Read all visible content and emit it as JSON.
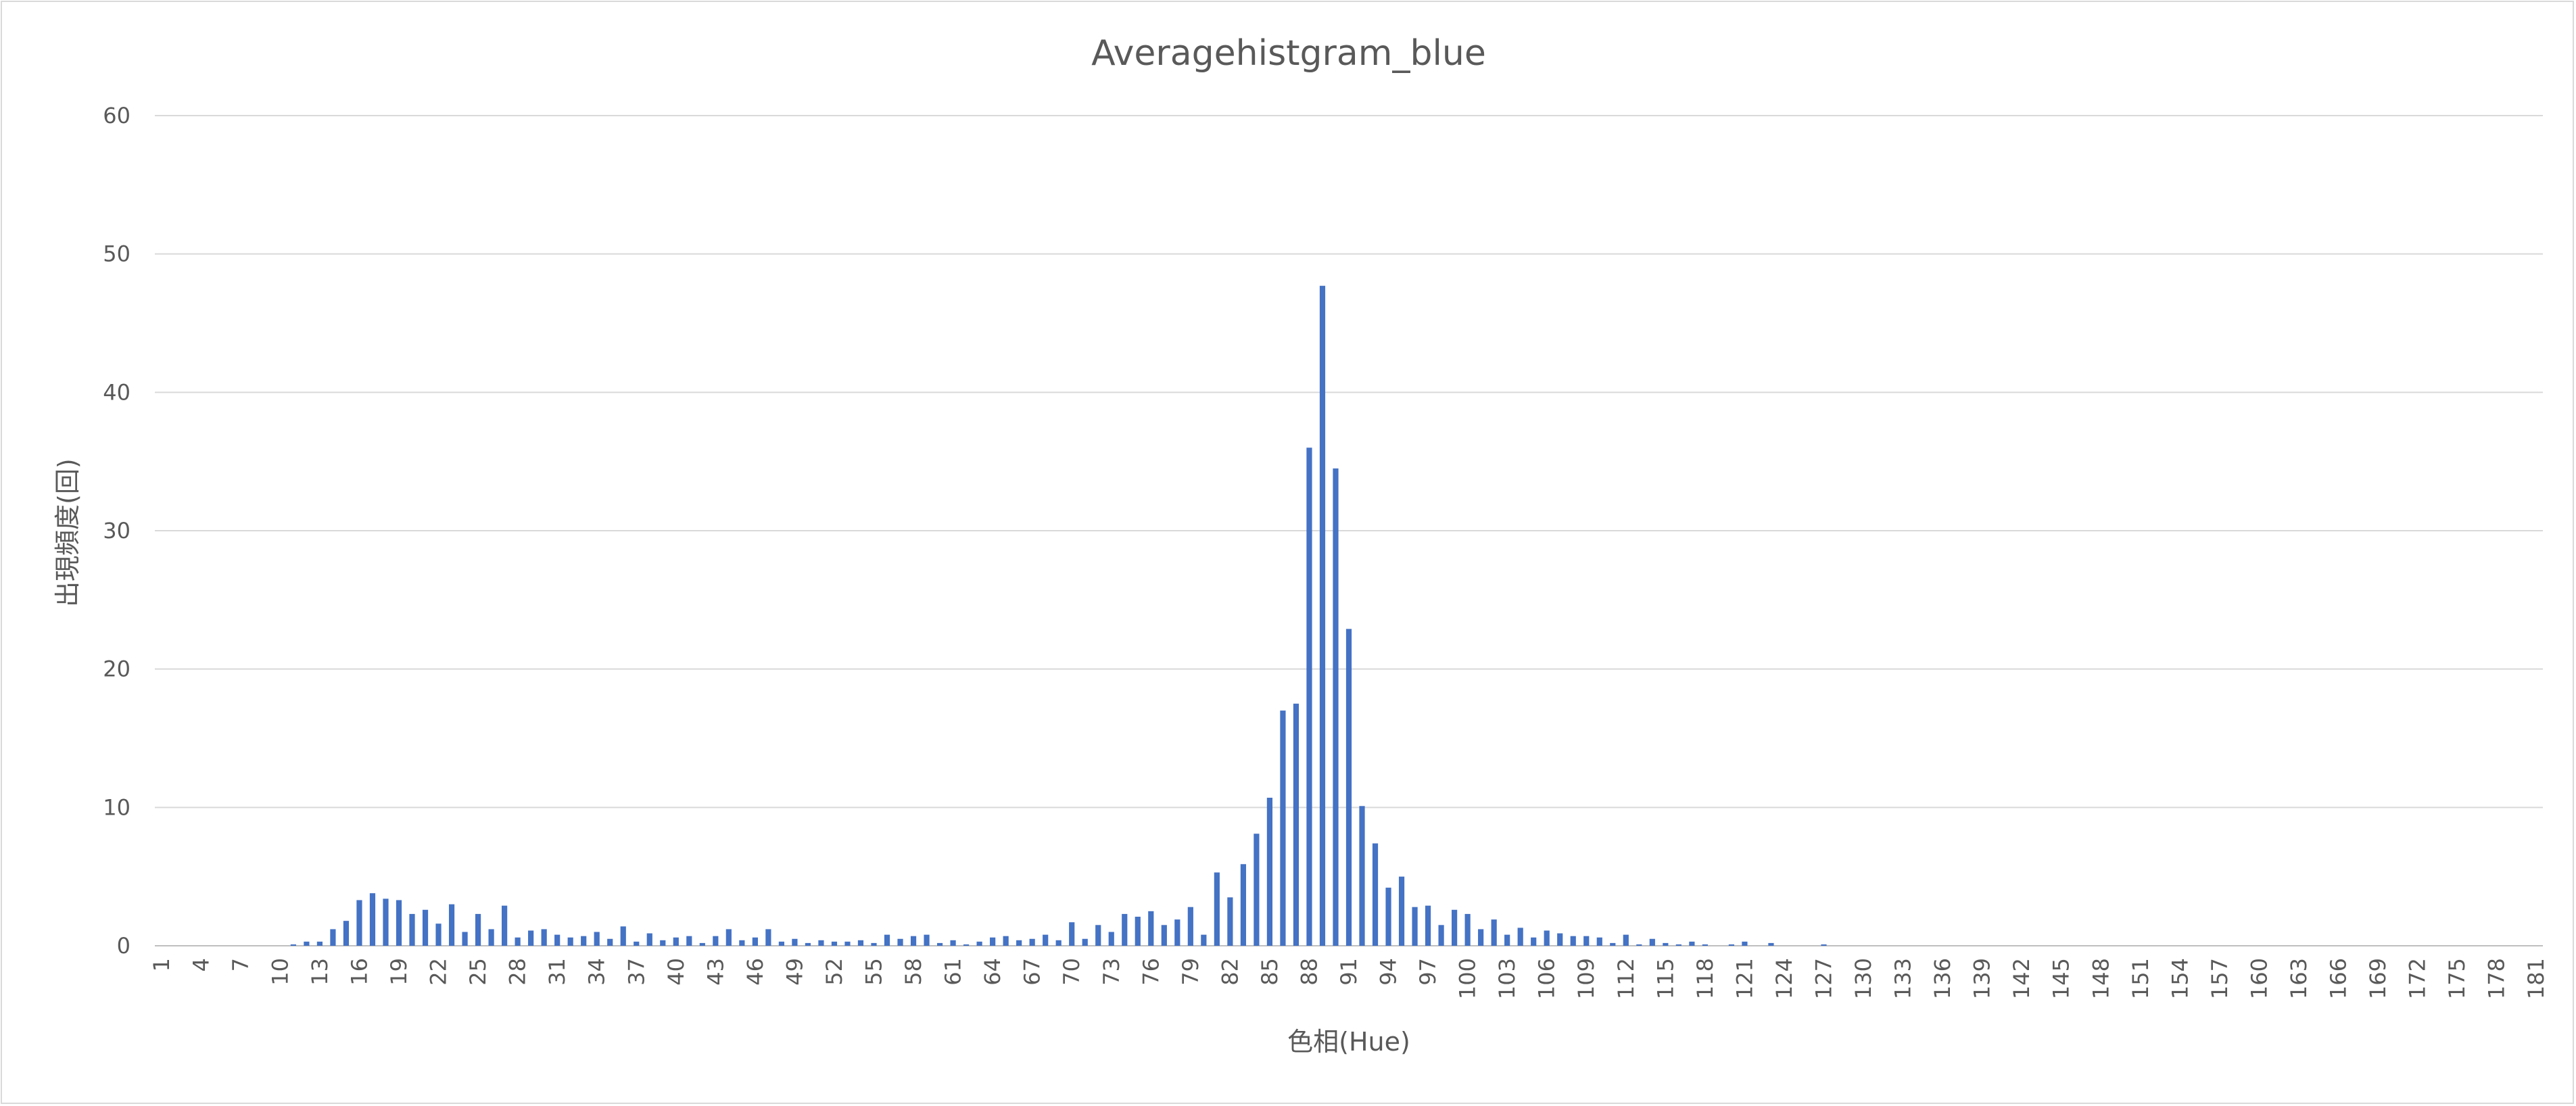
{
  "chart_data": {
    "type": "bar",
    "title": "Averagehistgram_blue",
    "xlabel": "色相(Hue)",
    "ylabel": "出現頻度(回)",
    "ylim": [
      0,
      60
    ],
    "yticks": [
      0,
      10,
      20,
      30,
      40,
      50,
      60
    ],
    "grid": true,
    "bar_color": "#4472c4",
    "x_start": 1,
    "x_end": 179,
    "tick_every": 3,
    "series": [
      {
        "values": [
          0,
          0,
          0,
          0,
          0,
          0,
          0,
          0,
          0,
          0,
          0.1,
          0.3,
          0.3,
          1.2,
          1.8,
          3.3,
          3.8,
          3.4,
          3.3,
          2.3,
          2.6,
          1.6,
          3.0,
          1.0,
          2.3,
          1.2,
          2.9,
          0.6,
          1.1,
          1.2,
          0.8,
          0.6,
          0.7,
          1.0,
          0.5,
          1.4,
          0.3,
          0.9,
          0.4,
          0.6,
          0.7,
          0.2,
          0.7,
          1.2,
          0.4,
          0.6,
          1.2,
          0.3,
          0.5,
          0.2,
          0.4,
          0.3,
          0.3,
          0.4,
          0.2,
          0.8,
          0.5,
          0.7,
          0.8,
          0.2,
          0.4,
          0.1,
          0.3,
          0.6,
          0.7,
          0.4,
          0.5,
          0.8,
          0.4,
          1.7,
          0.5,
          1.5,
          1.0,
          2.3,
          2.1,
          2.5,
          1.5,
          1.9,
          2.8,
          0.8,
          5.3,
          3.5,
          5.9,
          8.1,
          10.7,
          17.0,
          17.5,
          36.0,
          47.7,
          34.5,
          22.9,
          10.1,
          7.4,
          4.2,
          5.0,
          2.8,
          2.9,
          1.5,
          2.6,
          2.3,
          1.2,
          1.9,
          0.8,
          1.3,
          0.6,
          1.1,
          0.9,
          0.7,
          0.7,
          0.6,
          0.2,
          0.8,
          0.1,
          0.5,
          0.2,
          0.1,
          0.3,
          0.1,
          0,
          0.1,
          0.3,
          0,
          0.2,
          0,
          0,
          0,
          0.1,
          0,
          0,
          0,
          0,
          0,
          0,
          0,
          0,
          0,
          0,
          0,
          0,
          0,
          0,
          0,
          0,
          0,
          0,
          0,
          0,
          0,
          0,
          0,
          0,
          0,
          0,
          0,
          0,
          0,
          0,
          0,
          0,
          0,
          0,
          0,
          0,
          0,
          0,
          0,
          0,
          0,
          0,
          0,
          0,
          0,
          0,
          0,
          0,
          0,
          0,
          0,
          0,
          0,
          0
        ]
      }
    ]
  }
}
